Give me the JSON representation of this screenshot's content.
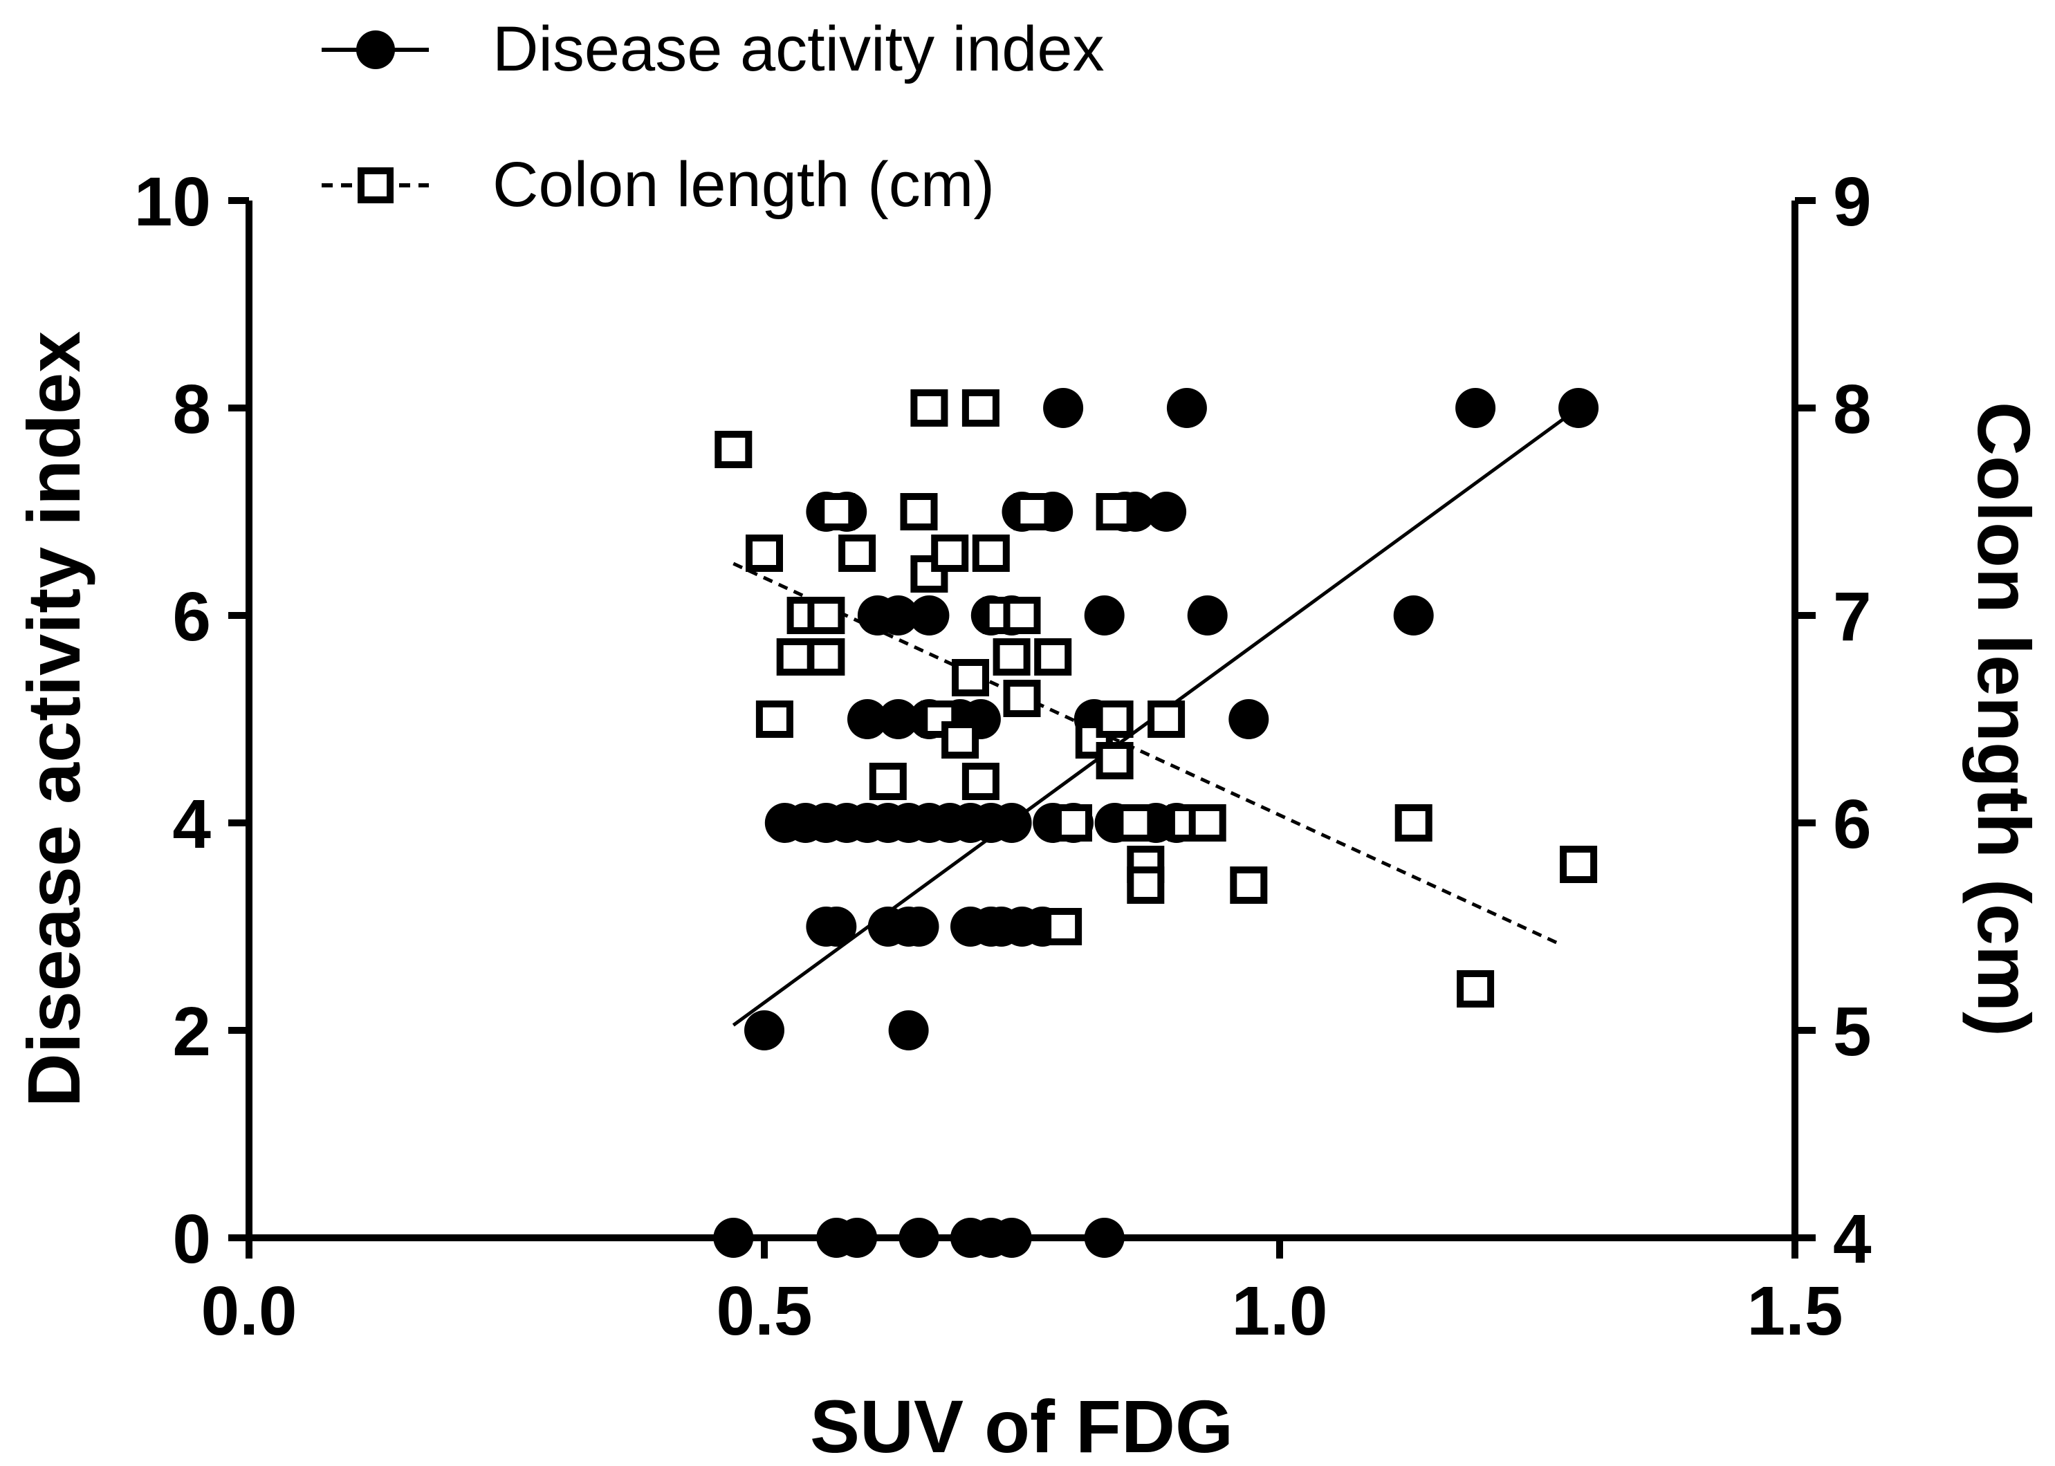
{
  "chart_data": {
    "type": "scatter",
    "xlabel": "SUV of FDG",
    "ylabel_left": "Disease activity index",
    "ylabel_right": "Colon length (cm)",
    "xlim": [
      0,
      1.5
    ],
    "ylim_left": [
      0,
      10
    ],
    "ylim_right": [
      4,
      9
    ],
    "xticks": [
      "0.0",
      "0.5",
      "1.0",
      "1.5"
    ],
    "yticks_left": [
      "0",
      "2",
      "4",
      "6",
      "8",
      "10"
    ],
    "yticks_right": [
      "4",
      "5",
      "6",
      "7",
      "8",
      "9"
    ],
    "legend_position": "top-left",
    "series": [
      {
        "name": "Disease activity index",
        "axis": "left",
        "marker": "filled-circle",
        "line_style": "solid",
        "fit": [
          [
            0.47,
            2.05
          ],
          [
            1.29,
            8.0
          ]
        ],
        "points": [
          [
            0.47,
            0
          ],
          [
            0.57,
            0
          ],
          [
            0.59,
            0
          ],
          [
            0.65,
            0
          ],
          [
            0.7,
            0
          ],
          [
            0.72,
            0
          ],
          [
            0.74,
            0
          ],
          [
            0.83,
            0
          ],
          [
            0.5,
            2
          ],
          [
            0.64,
            2
          ],
          [
            0.56,
            3
          ],
          [
            0.57,
            3
          ],
          [
            0.62,
            3
          ],
          [
            0.64,
            3
          ],
          [
            0.65,
            3
          ],
          [
            0.7,
            3
          ],
          [
            0.72,
            3
          ],
          [
            0.73,
            3
          ],
          [
            0.75,
            3
          ],
          [
            0.77,
            3
          ],
          [
            0.52,
            4
          ],
          [
            0.54,
            4
          ],
          [
            0.56,
            4
          ],
          [
            0.58,
            4
          ],
          [
            0.6,
            4
          ],
          [
            0.62,
            4
          ],
          [
            0.64,
            4
          ],
          [
            0.66,
            4
          ],
          [
            0.68,
            4
          ],
          [
            0.7,
            4
          ],
          [
            0.72,
            4
          ],
          [
            0.74,
            4
          ],
          [
            0.78,
            4
          ],
          [
            0.8,
            4
          ],
          [
            0.84,
            4
          ],
          [
            0.88,
            4
          ],
          [
            0.9,
            4
          ],
          [
            0.6,
            5
          ],
          [
            0.63,
            5
          ],
          [
            0.66,
            5
          ],
          [
            0.69,
            5
          ],
          [
            0.71,
            5
          ],
          [
            0.82,
            5
          ],
          [
            0.97,
            5
          ],
          [
            0.61,
            6
          ],
          [
            0.63,
            6
          ],
          [
            0.66,
            6
          ],
          [
            0.72,
            6
          ],
          [
            0.74,
            6
          ],
          [
            0.83,
            6
          ],
          [
            0.93,
            6
          ],
          [
            1.13,
            6
          ],
          [
            0.56,
            7
          ],
          [
            0.58,
            7
          ],
          [
            0.75,
            7
          ],
          [
            0.78,
            7
          ],
          [
            0.85,
            7
          ],
          [
            0.86,
            7
          ],
          [
            0.89,
            7
          ],
          [
            0.79,
            8
          ],
          [
            0.91,
            8
          ],
          [
            1.19,
            8
          ],
          [
            1.29,
            8
          ]
        ]
      },
      {
        "name": "Colon length (cm)",
        "axis": "right",
        "marker": "open-square",
        "line_style": "dashed",
        "fit": [
          [
            0.47,
            7.25
          ],
          [
            1.27,
            5.42
          ]
        ],
        "points": [
          [
            0.47,
            7.8
          ],
          [
            0.5,
            7.3
          ],
          [
            0.51,
            6.5
          ],
          [
            0.53,
            6.8
          ],
          [
            0.54,
            7.0
          ],
          [
            0.56,
            6.8
          ],
          [
            0.56,
            7.0
          ],
          [
            0.57,
            7.5
          ],
          [
            0.59,
            7.3
          ],
          [
            0.62,
            6.2
          ],
          [
            0.65,
            7.5
          ],
          [
            0.66,
            7.2
          ],
          [
            0.67,
            6.5
          ],
          [
            0.68,
            7.3
          ],
          [
            0.69,
            6.4
          ],
          [
            0.7,
            6.7
          ],
          [
            0.71,
            8.0
          ],
          [
            0.71,
            6.2
          ],
          [
            0.72,
            7.3
          ],
          [
            0.73,
            7.0
          ],
          [
            0.74,
            6.8
          ],
          [
            0.75,
            7.0
          ],
          [
            0.75,
            6.6
          ],
          [
            0.76,
            7.5
          ],
          [
            0.78,
            6.8
          ],
          [
            0.79,
            5.5
          ],
          [
            0.66,
            8.0
          ],
          [
            0.8,
            6.0
          ],
          [
            0.82,
            6.4
          ],
          [
            0.84,
            7.5
          ],
          [
            0.84,
            6.5
          ],
          [
            0.84,
            6.3
          ],
          [
            0.86,
            6.0
          ],
          [
            0.87,
            5.8
          ],
          [
            0.87,
            5.7
          ],
          [
            0.89,
            6.5
          ],
          [
            0.91,
            6.0
          ],
          [
            0.93,
            6.0
          ],
          [
            0.97,
            5.7
          ],
          [
            1.13,
            6.0
          ],
          [
            1.19,
            5.2
          ],
          [
            1.29,
            5.8
          ]
        ]
      }
    ]
  }
}
